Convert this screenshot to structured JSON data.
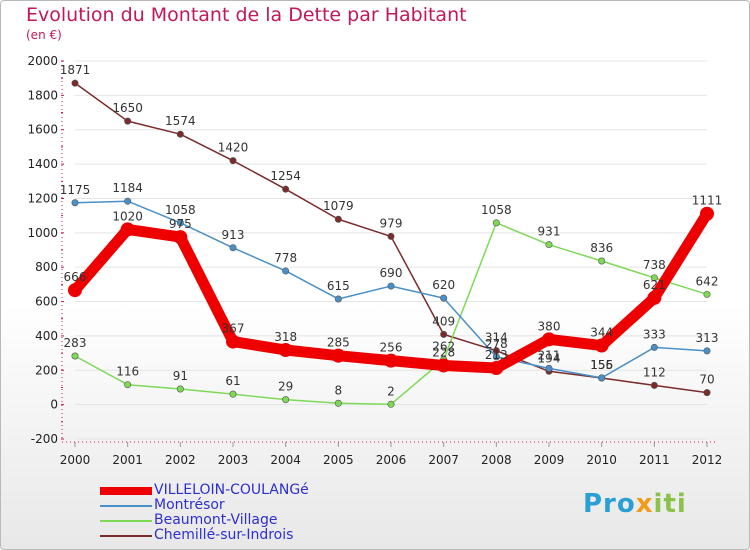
{
  "chart_data": {
    "type": "line",
    "title": "Evolution du Montant de la Dette par Habitant",
    "unit_label": "(en €)",
    "x": [
      "2000",
      "2001",
      "2002",
      "2003",
      "2004",
      "2005",
      "2006",
      "2007",
      "2008",
      "2009",
      "2010",
      "2011",
      "2012"
    ],
    "ylim": [
      -200,
      2000
    ],
    "yticks": [
      -200,
      0,
      200,
      400,
      600,
      800,
      1000,
      1200,
      1400,
      1600,
      1800,
      2000
    ],
    "grid": true,
    "legend_position": "bottom-left",
    "series": [
      {
        "name": "VILLELOIN-COULANGé",
        "color": "#ee0000",
        "values": [
          666,
          1020,
          975,
          367,
          318,
          285,
          256,
          228,
          213,
          380,
          344,
          621,
          1111
        ],
        "labels": [
          "666",
          "1020",
          "975",
          "367",
          "318",
          "285",
          "256",
          "228",
          "213",
          "380",
          "344",
          "621",
          "1111"
        ]
      },
      {
        "name": "Montrésor",
        "color": "#4a90c8",
        "values": [
          1175,
          1184,
          1058,
          913,
          778,
          615,
          690,
          620,
          278,
          211,
          156,
          333,
          313
        ],
        "labels": [
          "1175",
          "1184",
          "1058",
          "913",
          "778",
          "615",
          "690",
          "620",
          "278",
          "211",
          "156",
          "333",
          "313"
        ]
      },
      {
        "name": "Beaumont-Village",
        "color": "#7ed957",
        "values": [
          283,
          116,
          91,
          61,
          29,
          8,
          2,
          262,
          1058,
          931,
          836,
          738,
          642
        ],
        "labels": [
          "283",
          "116",
          "91",
          "61",
          "29",
          "8",
          "2",
          "262",
          "1058",
          "931",
          "836",
          "738",
          "642"
        ]
      },
      {
        "name": "Chemillé-sur-Indrois",
        "color": "#7b2b2b",
        "values": [
          1871,
          1650,
          1574,
          1420,
          1254,
          1079,
          979,
          409,
          314,
          194,
          155,
          112,
          70
        ],
        "labels": [
          "1871",
          "1650",
          "1574",
          "1420",
          "1254",
          "1079",
          "979",
          "409",
          "314",
          "194",
          "155",
          "112",
          "70"
        ]
      }
    ]
  },
  "logo": {
    "p1": "Pro",
    "p2": "x",
    "p3": "iti"
  }
}
